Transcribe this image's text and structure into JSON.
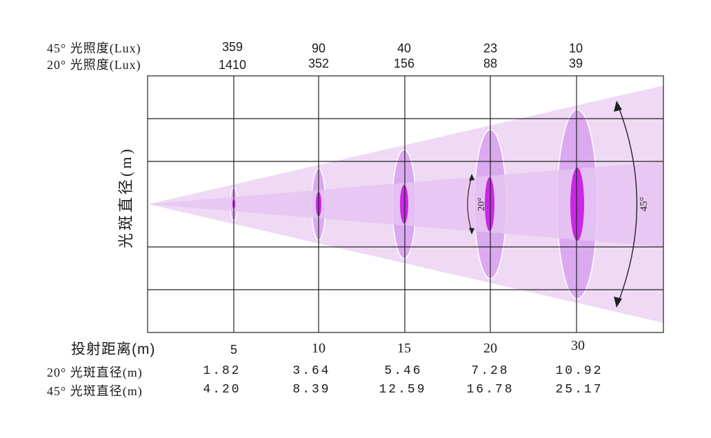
{
  "lux_rows": {
    "row45_label": "45° 光照度(Lux)",
    "row20_label": "20° 光照度(Lux)",
    "lux45": [
      "359",
      "90",
      "40",
      "23",
      "10"
    ],
    "lux20": [
      "1410",
      "352",
      "156",
      "88",
      "39"
    ]
  },
  "y_axis_label": "光斑直径(m)",
  "distance_row": {
    "label": "投射距离(m)",
    "values": [
      "5",
      "10",
      "15",
      "20",
      "30"
    ]
  },
  "diameter_rows": {
    "row20_label": "20° 光斑直径(m)",
    "row45_label": "45° 光斑直径(m)",
    "d20": [
      "1.82",
      "3.64",
      "5.46",
      "7.28",
      "10.92"
    ],
    "d45": [
      "4.20",
      "8.39",
      "12.59",
      "16.78",
      "25.17"
    ]
  },
  "angles": {
    "narrow": "20°",
    "wide": "45°"
  },
  "colors": {
    "wide_beam": "#efd9f5",
    "narrow_beam": "#e6c4f2",
    "wide_spot": "#dba9f0",
    "narrow_spot": "#c928e6",
    "grid": "#222222"
  }
}
